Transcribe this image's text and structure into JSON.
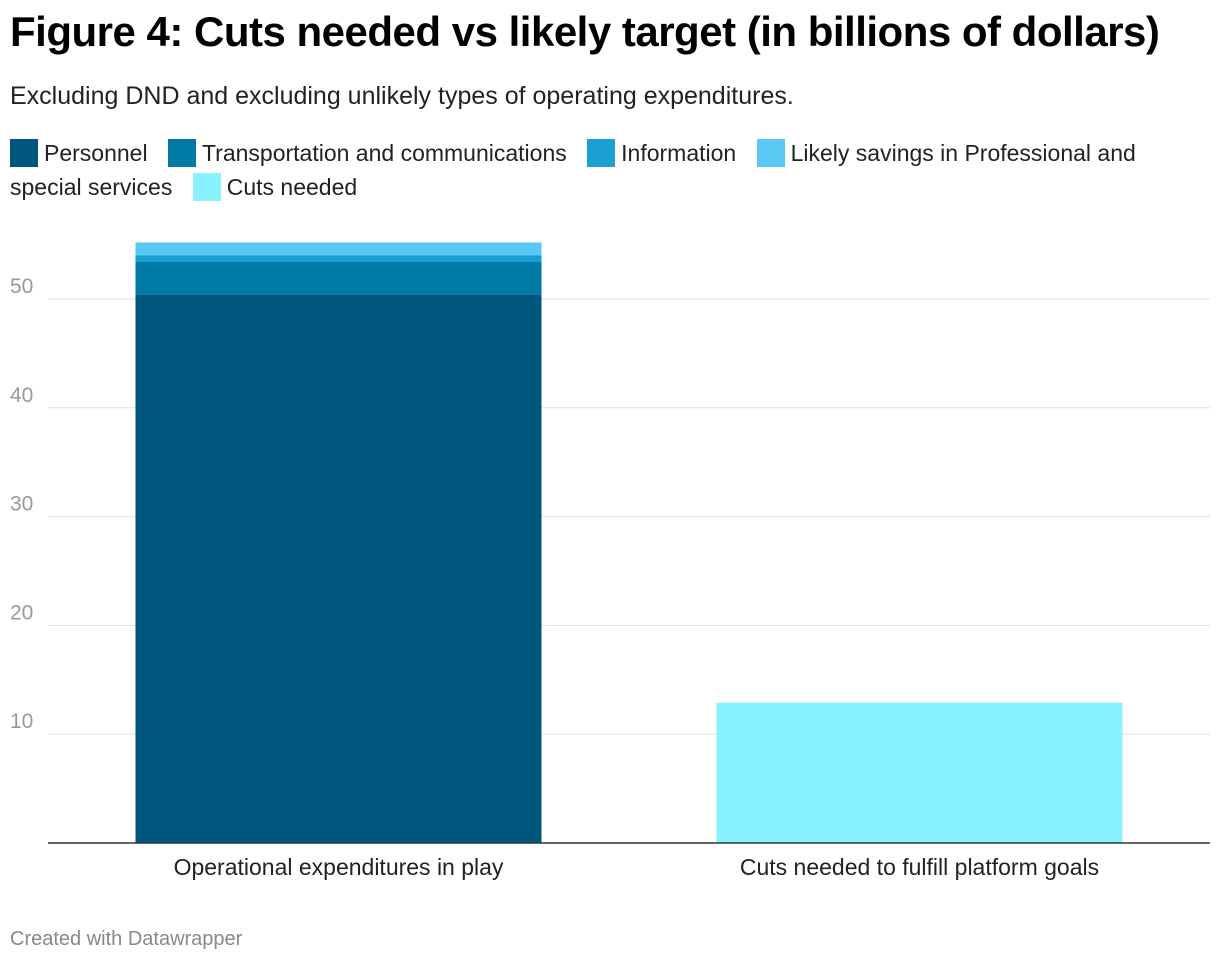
{
  "title": "Figure 4: Cuts needed vs likely target (in billions of dollars)",
  "subtitle": "Excluding DND and excluding unlikely types of operating expenditures.",
  "legend": [
    {
      "label": "Personnel",
      "color": "#00577d"
    },
    {
      "label": "Transportation and communications",
      "color": "#007aa5"
    },
    {
      "label": "Information",
      "color": "#1aa0d0"
    },
    {
      "label": "Likely savings in Professional and special services",
      "color": "#5ac8f5"
    },
    {
      "label": "Cuts needed",
      "color": "#88f3ff"
    }
  ],
  "chart_data": {
    "type": "bar",
    "stacked": true,
    "title": "Figure 4: Cuts needed vs likely target (in billions of dollars)",
    "categories": [
      "Operational expenditures in play",
      "Cuts needed to fulfill platform goals"
    ],
    "series": [
      {
        "name": "Personnel",
        "color": "#00577d",
        "values": [
          50.4,
          0
        ]
      },
      {
        "name": "Transportation and communications",
        "color": "#007aa5",
        "values": [
          3.0,
          0
        ]
      },
      {
        "name": "Information",
        "color": "#1aa0d0",
        "values": [
          0.6,
          0
        ]
      },
      {
        "name": "Likely savings in Professional and special services",
        "color": "#5ac8f5",
        "values": [
          1.2,
          0
        ]
      },
      {
        "name": "Cuts needed",
        "color": "#88f3ff",
        "values": [
          0,
          12.9
        ]
      }
    ],
    "yticks": [
      10,
      20,
      30,
      40,
      50
    ],
    "ylim": [
      0,
      60
    ],
    "xlabel": "",
    "ylabel": "",
    "grid": true
  },
  "footer": "Created with Datawrapper"
}
